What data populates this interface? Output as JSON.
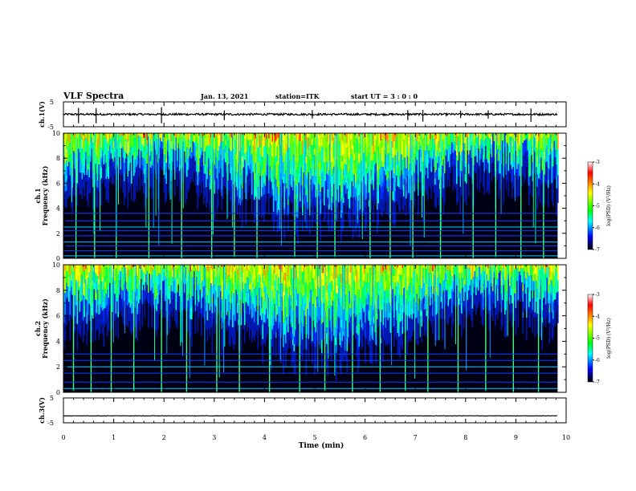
{
  "header": {
    "title": "VLF Spectra",
    "date": "Jan. 13, 2021",
    "station": "station=ITK",
    "start": "start UT =  3 : 0  : 0"
  },
  "colorbar": {
    "label": "log(PSD) (V²/Hz)",
    "ticks": [
      "-3",
      "-4",
      "-5",
      "-6",
      "-7"
    ],
    "colors": [
      "#ffffff",
      "#ff0000",
      "#ffff00",
      "#00ff00",
      "#00ffff",
      "#0000ff",
      "#000000"
    ]
  },
  "chart_data": [
    {
      "type": "line",
      "panel": "ch.1 waveform",
      "ylabel": "ch.1(V)",
      "ylim": [
        -5,
        5
      ],
      "yticks": [
        "5",
        "-5"
      ],
      "baseline": 0,
      "noise_amplitude": 0.4,
      "spike_times_min": [
        0.3,
        0.65,
        1.95,
        3.2,
        4.95,
        6.85,
        7.15,
        7.9,
        8.45,
        9.3
      ]
    },
    {
      "type": "heatmap",
      "panel": "ch.1 spectrogram",
      "xlabel": "",
      "ylabel": "ch.1 Frequency (kHz)",
      "xlim": [
        0,
        10
      ],
      "ylim": [
        0,
        10
      ],
      "yticks": [
        "0",
        "2",
        "4",
        "6",
        "8",
        "10"
      ],
      "zlim": [
        -7,
        -3
      ],
      "bands_khz": [
        0.2,
        0.6,
        1.0,
        1.3,
        1.8,
        2.2,
        2.5,
        3.0,
        3.6
      ],
      "sferic_times_min": [
        0.25,
        0.62,
        1.05,
        1.7,
        2.35,
        2.95,
        3.4,
        3.85,
        4.6,
        5.05,
        5.4,
        6.1,
        6.5,
        6.95,
        7.5,
        8.15,
        8.6,
        9.1,
        9.55
      ]
    },
    {
      "type": "heatmap",
      "panel": "ch.2 spectrogram",
      "xlabel": "",
      "ylabel": "ch.2 Frequency (kHz)",
      "xlim": [
        0,
        10
      ],
      "ylim": [
        0,
        10
      ],
      "yticks": [
        "0",
        "2",
        "4",
        "6",
        "8",
        "10"
      ],
      "zlim": [
        -7,
        -3
      ],
      "bands_khz": [
        0.3,
        0.8,
        1.5,
        2.0,
        2.5,
        3.0
      ],
      "sferic_times_min": [
        0.2,
        0.55,
        0.95,
        1.4,
        1.95,
        2.45,
        3.05,
        3.5,
        4.1,
        4.7,
        5.2,
        5.75,
        6.3,
        6.8,
        7.25,
        7.85,
        8.4,
        8.95,
        9.45
      ]
    },
    {
      "type": "line",
      "panel": "ch.3 waveform",
      "xlabel": "Time (min)",
      "ylabel": "ch.3(V)",
      "ylim": [
        -5,
        5
      ],
      "yticks": [
        "5",
        "-5"
      ],
      "baseline": -2.2,
      "noise_amplitude": 0.08
    }
  ],
  "xaxis": {
    "label": "Time (min)",
    "xlim": [
      0,
      10
    ],
    "ticks": [
      "0",
      "1",
      "2",
      "3",
      "4",
      "5",
      "6",
      "7",
      "8",
      "9",
      "10"
    ],
    "data_end_min": 9.83
  }
}
